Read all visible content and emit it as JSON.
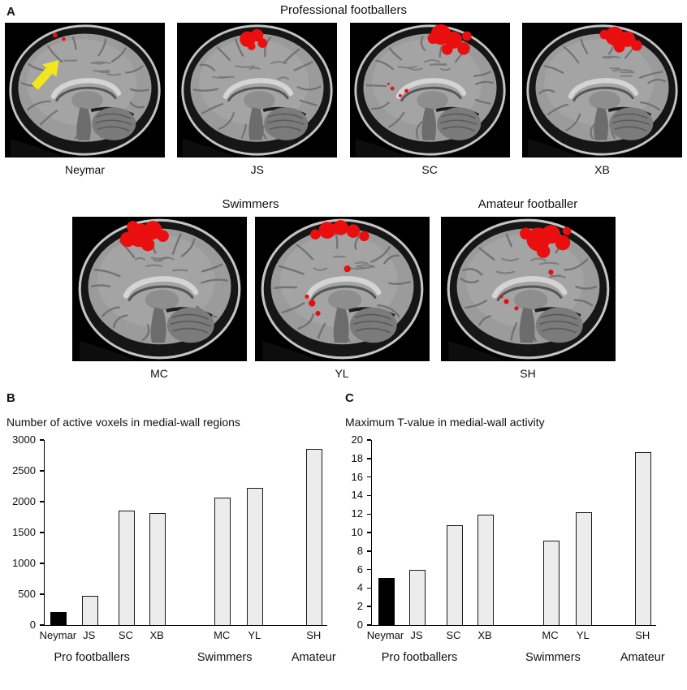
{
  "figure": {
    "panel_a": {
      "label": "A",
      "groups": [
        {
          "title": "Professional footballers",
          "subjects": [
            {
              "name": "Neymar",
              "arrow": true
            },
            {
              "name": "JS"
            },
            {
              "name": "SC"
            },
            {
              "name": "XB"
            }
          ]
        },
        {
          "title": "Swimmers",
          "subjects": [
            {
              "name": "MC"
            },
            {
              "name": "YL"
            }
          ]
        },
        {
          "title": "Amateur footballer",
          "subjects": [
            {
              "name": "SH"
            }
          ]
        }
      ]
    },
    "panel_b": {
      "label": "B"
    },
    "panel_c": {
      "label": "C"
    }
  },
  "chart_data": [
    {
      "type": "bar",
      "title": "Number of active voxels in medial-wall regions",
      "categories": [
        "Neymar",
        "JS",
        "SC",
        "XB",
        "MC",
        "YL",
        "SH"
      ],
      "values": [
        210,
        470,
        1860,
        1820,
        2070,
        2220,
        2860
      ],
      "group_labels": [
        "Pro footballers",
        "Swimmers",
        "Amateur"
      ],
      "xlabel": "",
      "ylabel": "",
      "ylim": [
        0,
        3000
      ],
      "ytick_step": 500,
      "grid": false,
      "legend": "none",
      "bar_colors": [
        "#000000",
        "#ececec",
        "#ececec",
        "#ececec",
        "#ececec",
        "#ececec",
        "#ececec"
      ]
    },
    {
      "type": "bar",
      "title": "Maximum T-value in medial-wall activity",
      "categories": [
        "Neymar",
        "JS",
        "SC",
        "XB",
        "MC",
        "YL",
        "SH"
      ],
      "values": [
        5.1,
        6.0,
        10.8,
        11.9,
        9.1,
        12.2,
        18.7
      ],
      "group_labels": [
        "Pro footballers",
        "Swimmers",
        "Amateur"
      ],
      "xlabel": "",
      "ylabel": "",
      "ylim": [
        0,
        20
      ],
      "ytick_step": 2,
      "grid": false,
      "legend": "none",
      "bar_colors": [
        "#000000",
        "#ececec",
        "#ececec",
        "#ececec",
        "#ececec",
        "#ececec",
        "#ececec"
      ]
    }
  ],
  "colors": {
    "activation_red": "#ea0e0e",
    "arrow_yellow": "#f2e71c",
    "bar_fill": "#ececec",
    "bar_black": "#000000"
  }
}
